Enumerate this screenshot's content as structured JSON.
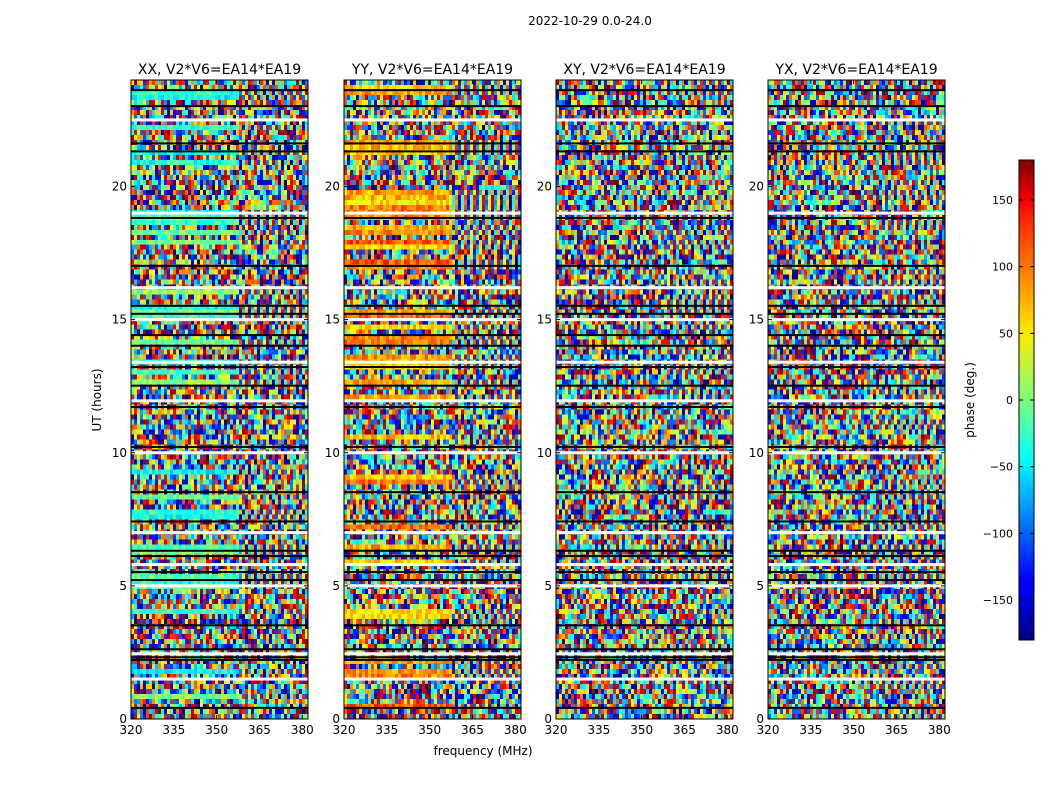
{
  "figure": {
    "suptitle": "2022-10-29 0.0-24.0",
    "xlabel": "frequency (MHz)",
    "ylabel": "UT (hours)"
  },
  "chart_data": {
    "type": "heatmap",
    "colormap": "jet",
    "x_range": [
      320,
      382
    ],
    "y_range": [
      0,
      24
    ],
    "x_ticks": [
      320,
      335,
      350,
      365,
      380
    ],
    "y_ticks": [
      0,
      5,
      10,
      15,
      20
    ],
    "panels": [
      {
        "title": "XX, V2*V6=EA14*EA19",
        "polarization": "XX"
      },
      {
        "title": "YY, V2*V6=EA14*EA19",
        "polarization": "YY"
      },
      {
        "title": "XY, V2*V6=EA14*EA19",
        "polarization": "XY"
      },
      {
        "title": "YX, V2*V6=EA14*EA19",
        "polarization": "YX"
      }
    ],
    "colorbar": {
      "label": "phase (deg.)",
      "range": [
        -180,
        180
      ],
      "ticks": [
        -150,
        -100,
        -50,
        0,
        50,
        100,
        150
      ]
    },
    "gap_rows_hours": [
      0.4,
      1.5,
      2.2,
      2.3,
      2.45,
      2.6,
      3.5,
      5.0,
      5.2,
      5.5,
      5.8,
      6.1,
      6.3,
      7.0,
      7.4,
      8.5,
      10.0,
      10.2,
      11.7,
      11.95,
      12.5,
      13.2,
      13.4,
      14.0,
      14.4,
      15.0,
      15.2,
      15.5,
      16.2,
      17.0,
      18.8,
      19.0,
      21.3,
      21.6,
      22.5,
      23.0,
      23.6
    ]
  }
}
